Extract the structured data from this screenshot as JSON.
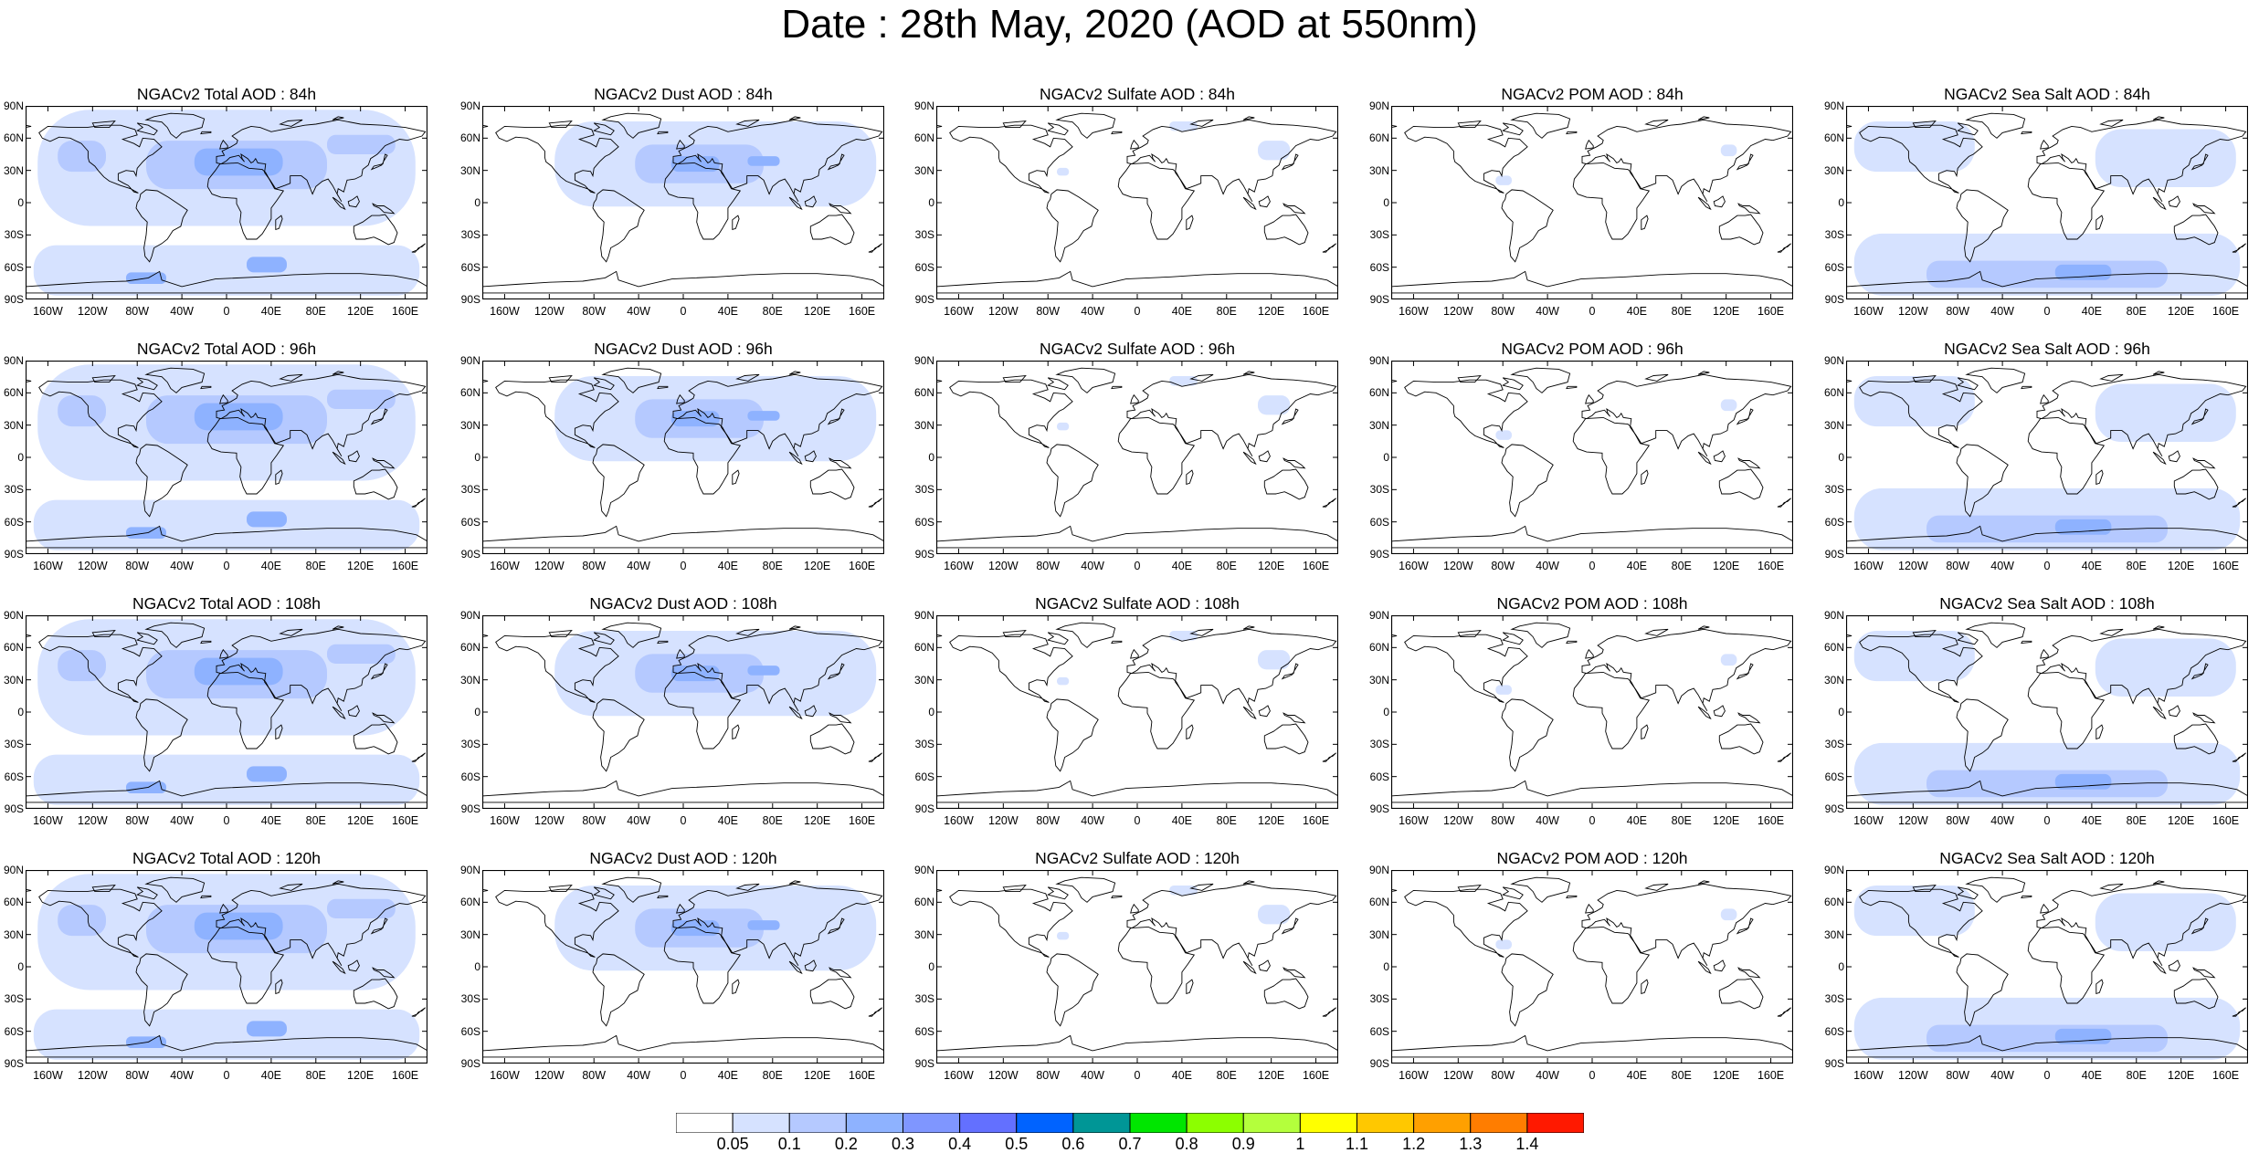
{
  "title": "Date : 28th May, 2020 (AOD at 550nm)",
  "species": [
    {
      "key": "total",
      "label": "Total AOD"
    },
    {
      "key": "dust",
      "label": "Dust AOD"
    },
    {
      "key": "sulfate",
      "label": "Sulfate AOD"
    },
    {
      "key": "pom",
      "label": "POM AOD"
    },
    {
      "key": "seasalt",
      "label": "Sea Salt AOD"
    }
  ],
  "panels": [
    {
      "title": "NGACv2 Total AOD : 84h",
      "species": "total",
      "forecast_hour": "84h"
    },
    {
      "title": "NGACv2 Dust AOD : 84h",
      "species": "dust",
      "forecast_hour": "84h"
    },
    {
      "title": "NGACv2 Sulfate AOD : 84h",
      "species": "sulfate",
      "forecast_hour": "84h"
    },
    {
      "title": "NGACv2 POM AOD : 84h",
      "species": "pom",
      "forecast_hour": "84h"
    },
    {
      "title": "NGACv2 Sea Salt AOD : 84h",
      "species": "seasalt",
      "forecast_hour": "84h"
    },
    {
      "title": "NGACv2 Total AOD : 96h",
      "species": "total",
      "forecast_hour": "96h"
    },
    {
      "title": "NGACv2 Dust AOD : 96h",
      "species": "dust",
      "forecast_hour": "96h"
    },
    {
      "title": "NGACv2 Sulfate AOD : 96h",
      "species": "sulfate",
      "forecast_hour": "96h"
    },
    {
      "title": "NGACv2 POM AOD : 96h",
      "species": "pom",
      "forecast_hour": "96h"
    },
    {
      "title": "NGACv2 Sea Salt AOD : 96h",
      "species": "seasalt",
      "forecast_hour": "96h"
    },
    {
      "title": "NGACv2 Total AOD : 108h",
      "species": "total",
      "forecast_hour": "108h"
    },
    {
      "title": "NGACv2 Dust AOD : 108h",
      "species": "dust",
      "forecast_hour": "108h"
    },
    {
      "title": "NGACv2 Sulfate AOD : 108h",
      "species": "sulfate",
      "forecast_hour": "108h"
    },
    {
      "title": "NGACv2 POM AOD : 108h",
      "species": "pom",
      "forecast_hour": "108h"
    },
    {
      "title": "NGACv2 Sea Salt AOD : 108h",
      "species": "seasalt",
      "forecast_hour": "108h"
    },
    {
      "title": "NGACv2 Total AOD : 120h",
      "species": "total",
      "forecast_hour": "120h"
    },
    {
      "title": "NGACv2 Dust AOD : 120h",
      "species": "dust",
      "forecast_hour": "120h"
    },
    {
      "title": "NGACv2 Sulfate AOD : 120h",
      "species": "sulfate",
      "forecast_hour": "120h"
    },
    {
      "title": "NGACv2 POM AOD : 120h",
      "species": "pom",
      "forecast_hour": "120h"
    },
    {
      "title": "NGACv2 Sea Salt  AOD : 120h",
      "species": "seasalt",
      "forecast_hour": "120h"
    }
  ],
  "lat_ticks": [
    "90N",
    "60N",
    "30N",
    "0",
    "30S",
    "60S",
    "90S"
  ],
  "lon_ticks": [
    "160W",
    "120W",
    "80W",
    "40W",
    "0",
    "40E",
    "80E",
    "120E",
    "160E"
  ],
  "colorbar": {
    "labels": [
      "0.05",
      "0.1",
      "0.2",
      "0.3",
      "0.4",
      "0.5",
      "0.6",
      "0.7",
      "0.8",
      "0.9",
      "1",
      "1.1",
      "1.2",
      "1.3",
      "1.4"
    ],
    "colors": [
      "#ffffff",
      "#d6e2ff",
      "#b5c9ff",
      "#8eb2ff",
      "#7f96ff",
      "#6370ff",
      "#0063ff",
      "#009696",
      "#00e600",
      "#8cff00",
      "#b4ff3c",
      "#ffff00",
      "#ffc800",
      "#ffa000",
      "#ff7d00",
      "#ff1900"
    ]
  },
  "colors": {
    "land_outline": "#000000",
    "background": "#ffffff"
  }
}
